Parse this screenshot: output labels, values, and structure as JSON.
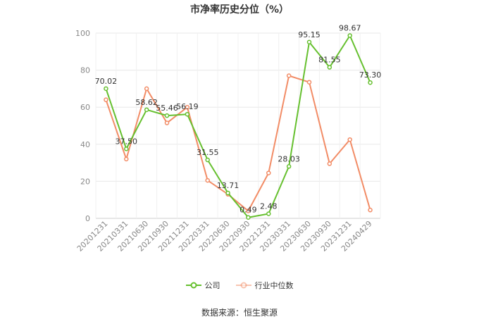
{
  "chart_data": {
    "type": "line",
    "title": "市净率历史分位（%）",
    "categories": [
      "20201231",
      "20210331",
      "20210630",
      "20210930",
      "20211231",
      "20220331",
      "20220630",
      "20220930",
      "20221231",
      "20230331",
      "20230630",
      "20230930",
      "20231231",
      "20240429"
    ],
    "ylim": [
      0,
      100
    ],
    "yticks": [
      0,
      20,
      40,
      60,
      80,
      100
    ],
    "grid": true,
    "legend_position": "bottom",
    "series": [
      {
        "name": "公司",
        "color": "#66c02f",
        "values": [
          70.02,
          37.5,
          58.62,
          55.46,
          56.19,
          31.55,
          13.71,
          0.49,
          2.48,
          28.03,
          95.15,
          81.55,
          98.67,
          73.3
        ],
        "labels": [
          "70.02",
          "37.50",
          "58.62",
          "55.46",
          "56.19",
          "31.55",
          "13.71",
          "0.49",
          "2.48",
          "28.03",
          "95.15",
          "81.55",
          "98.67",
          "73.30"
        ]
      },
      {
        "name": "行业中位数",
        "color": "#f28c66",
        "values": [
          64.0,
          32.0,
          70.0,
          51.5,
          60.0,
          20.5,
          13.0,
          4.0,
          24.5,
          77.0,
          73.5,
          29.5,
          42.5,
          4.5
        ]
      }
    ]
  },
  "source": "数据来源：恒生聚源"
}
